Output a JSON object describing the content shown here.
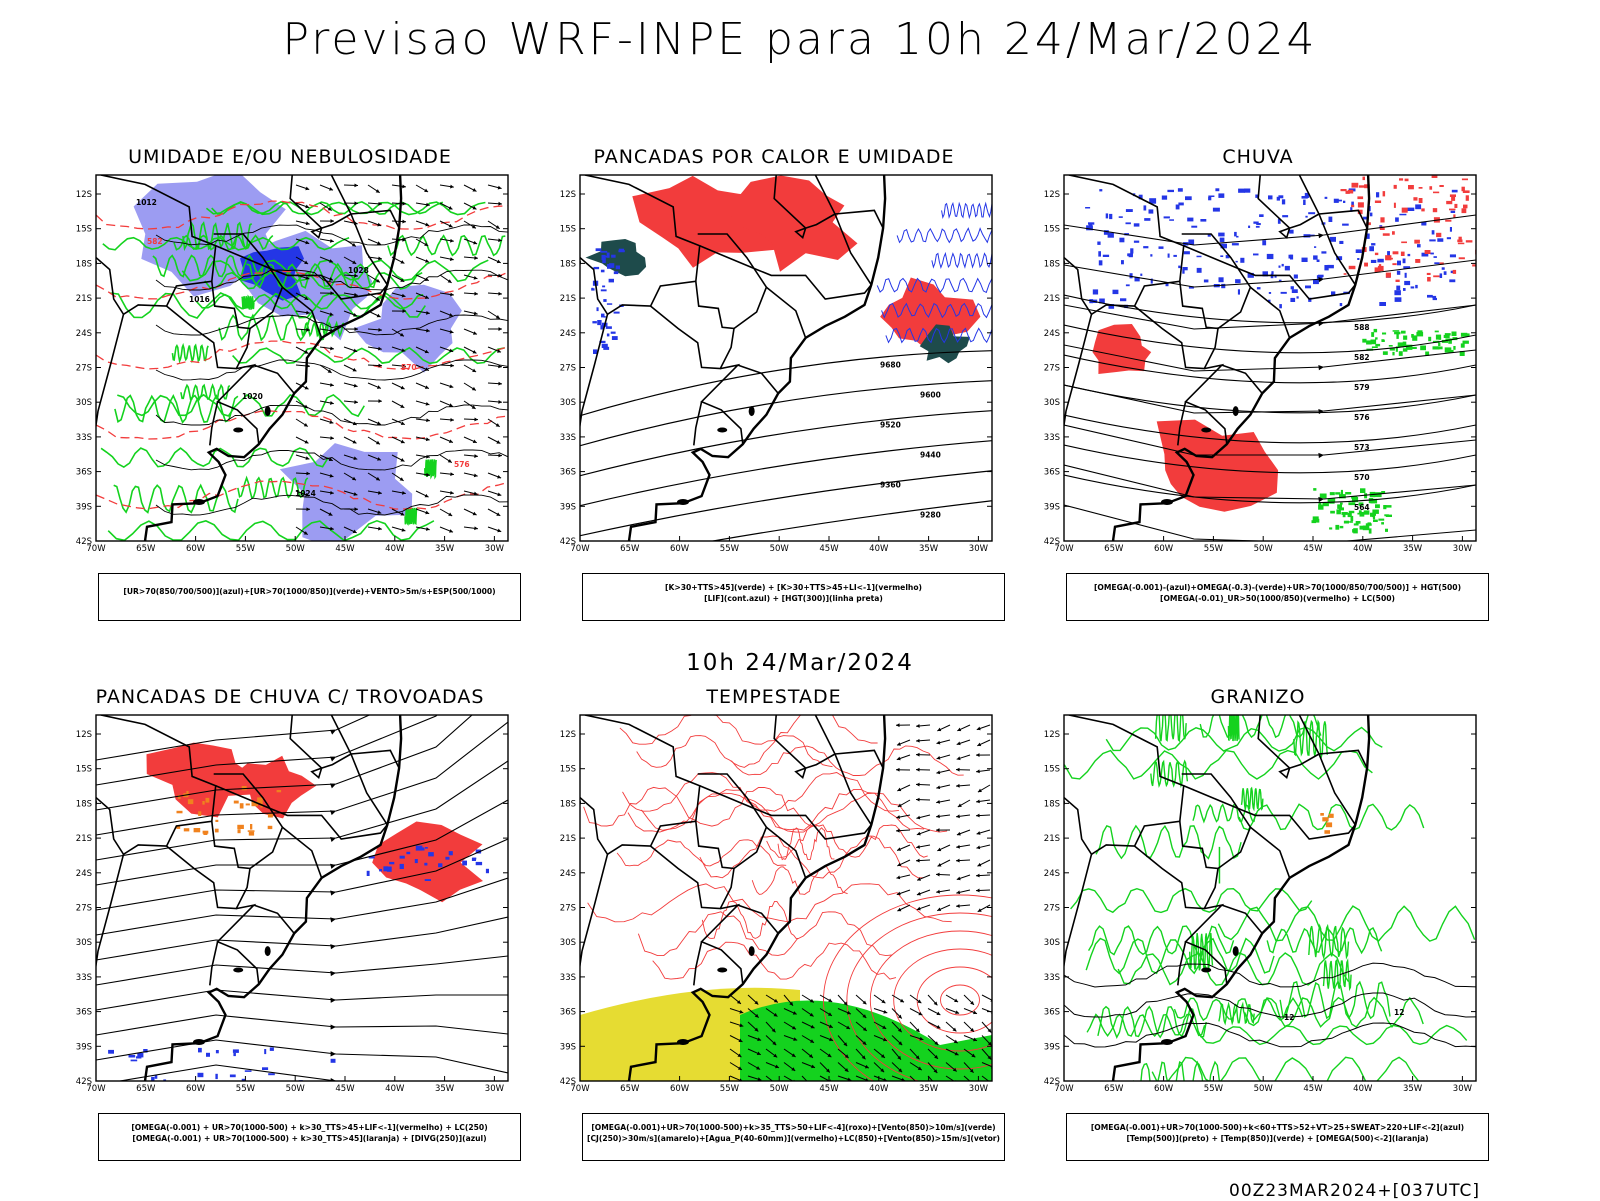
{
  "header": {
    "title": "Previsao WRF-INPE  para 10h 24/Mar/2024"
  },
  "mid_title": "10h 24/Mar/2024",
  "footer": "00Z23MAR2024+[037UTC]",
  "axes": {
    "lat_labels": [
      "12S",
      "15S",
      "18S",
      "21S",
      "24S",
      "27S",
      "30S",
      "33S",
      "36S",
      "39S",
      "42S"
    ],
    "lon_labels": [
      "70W",
      "65W",
      "60W",
      "55W",
      "50W",
      "45W",
      "40W",
      "35W",
      "30W"
    ]
  },
  "colors": {
    "purple_fill": "#9c9cf2",
    "blue": "#2436e6",
    "green": "#14d21e",
    "red": "#f23c3c",
    "dark_teal": "#1e4b4b",
    "yellow": "#e6dc32",
    "orange": "#f0821e"
  },
  "panels": [
    {
      "title": "UMIDADE E/OU NEBULOSIDADE",
      "legend": [
        "[UR>70(850/700/500)](azul)+[UR>70(1000/850)](verde)+VENTO>5m/s+ESP(500/1000)"
      ]
    },
    {
      "title": "PANCADAS POR CALOR E UMIDADE",
      "legend": [
        "[K>30+TTS>45](verde) + [K>30+TTS>45+LI<-1](vermelho)",
        "[LIF](cont.azul) + [HGT(300)](linha preta)"
      ]
    },
    {
      "title": "CHUVA",
      "legend": [
        "[OMEGA(-0.001)-(azul)+OMEGA(-0.3)-(verde)+UR>70(1000/850/700/500)] + HGT(500)",
        "[OMEGA(-0.01)_UR>50(1000/850)(vermelho) + LC(500)"
      ]
    },
    {
      "title": "PANCADAS DE CHUVA C/ TROVOADAS",
      "legend": [
        "[OMEGA(-0.001) + UR>70(1000-500) + k>30_TTS>45+LIF<-1](vermelho) + LC(250)",
        "[OMEGA(-0.001) + UR>70(1000-500) + k>30_TTS>45](laranja) + [DIVG(250)](azul)"
      ]
    },
    {
      "title": "TEMPESTADE",
      "legend": [
        "[OMEGA(-0.001)+UR>70(1000-500)+k>35_TTS>50+LIF<-4](roxo)+[Vento(850)>10m/s](verde)",
        "[CJ(250)>30m/s](amarelo)+[Agua_P(40-60mm)](vermelho)+LC(850)+[Vento(850)>15m/s](vetor)"
      ]
    },
    {
      "title": "GRANIZO",
      "legend": [
        "[OMEGA(-0.001)+UR>70(1000-500)+k<60+TTS>52+VT>25+SWEAT>220+LIF<-2](azul)",
        "[Temp(500)](preto) + [Temp(850)](verde) + [OMEGA(500)<-2](laranja)"
      ]
    }
  ],
  "contour_labels": {
    "p1": [
      "1012",
      "1016",
      "1020",
      "1024",
      "1028",
      "570",
      "576",
      "582"
    ],
    "p2": [
      "9680",
      "9600",
      "9520",
      "9440",
      "9360",
      "9280"
    ],
    "p3": [
      "588",
      "582",
      "579",
      "576",
      "573",
      "570",
      "564"
    ],
    "p6": [
      "12"
    ]
  }
}
